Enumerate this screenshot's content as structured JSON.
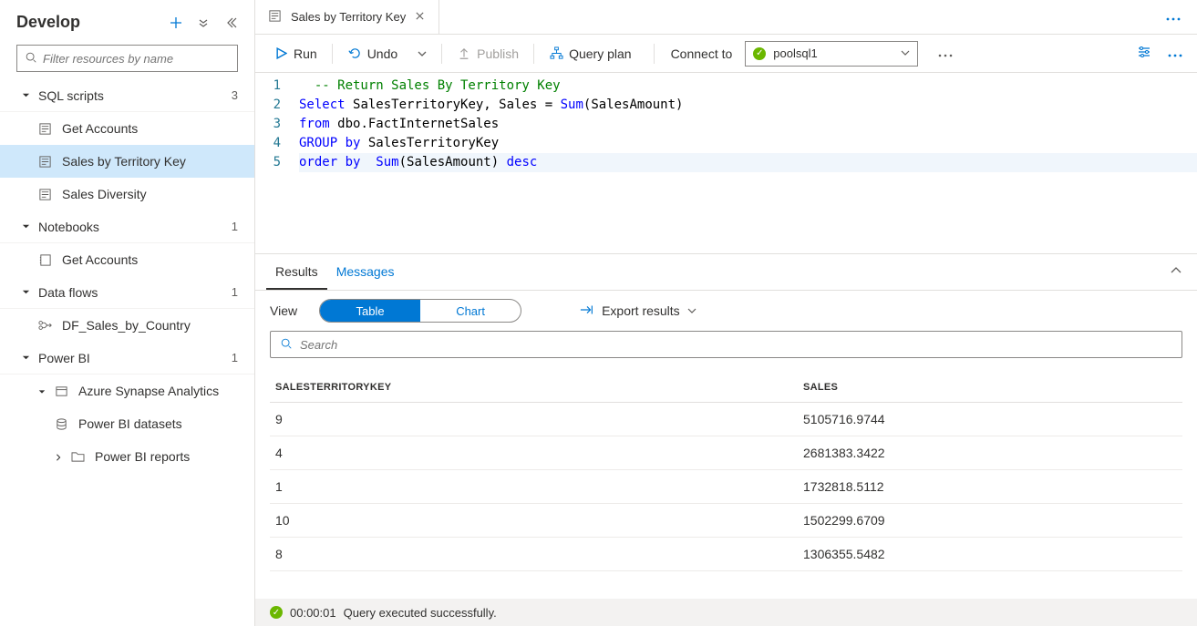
{
  "sidebar": {
    "title": "Develop",
    "filter_placeholder": "Filter resources by name",
    "sections": [
      {
        "label": "SQL scripts",
        "count": "3",
        "items": [
          {
            "label": "Get Accounts",
            "icon": "script-icon"
          },
          {
            "label": "Sales by Territory Key",
            "icon": "script-icon",
            "active": true
          },
          {
            "label": "Sales Diversity",
            "icon": "script-icon"
          }
        ]
      },
      {
        "label": "Notebooks",
        "count": "1",
        "items": [
          {
            "label": "Get Accounts",
            "icon": "notebook-icon"
          }
        ]
      },
      {
        "label": "Data flows",
        "count": "1",
        "items": [
          {
            "label": "DF_Sales_by_Country",
            "icon": "dataflow-icon"
          }
        ]
      },
      {
        "label": "Power BI",
        "count": "1",
        "items": [
          {
            "label": "Azure Synapse Analytics",
            "icon": "workspace-icon",
            "expandable": true,
            "level": 1,
            "children": [
              {
                "label": "Power BI datasets",
                "icon": "dataset-icon"
              },
              {
                "label": "Power BI reports",
                "icon": "folder-icon",
                "expandable": true
              }
            ]
          }
        ]
      }
    ]
  },
  "tab": {
    "title": "Sales by Territory Key"
  },
  "toolbar": {
    "run": "Run",
    "undo": "Undo",
    "publish": "Publish",
    "queryplan": "Query plan",
    "connect_label": "Connect to",
    "pool": "poolsql1"
  },
  "code": {
    "lines": [
      {
        "n": 1,
        "tokens": [
          {
            "t": "  ",
            "c": ""
          },
          {
            "t": "-- Return Sales By Territory Key",
            "c": "cm"
          }
        ]
      },
      {
        "n": 2,
        "tokens": [
          {
            "t": "Select ",
            "c": "kw"
          },
          {
            "t": "SalesTerritoryKey, Sales ",
            "c": "id"
          },
          {
            "t": "= ",
            "c": "op"
          },
          {
            "t": "Sum",
            "c": "kw"
          },
          {
            "t": "(SalesAmount)",
            "c": "id"
          }
        ]
      },
      {
        "n": 3,
        "tokens": [
          {
            "t": "from ",
            "c": "kw"
          },
          {
            "t": "dbo.FactInternetSales",
            "c": "id"
          }
        ]
      },
      {
        "n": 4,
        "tokens": [
          {
            "t": "GROUP by ",
            "c": "kw"
          },
          {
            "t": "SalesTerritoryKey",
            "c": "id"
          }
        ]
      },
      {
        "n": 5,
        "hl": true,
        "tokens": [
          {
            "t": "order by  ",
            "c": "kw"
          },
          {
            "t": "Sum",
            "c": "kw"
          },
          {
            "t": "(SalesAmount) ",
            "c": "id"
          },
          {
            "t": "desc",
            "c": "kw"
          }
        ]
      }
    ]
  },
  "results": {
    "tabs": {
      "results": "Results",
      "messages": "Messages"
    },
    "view_label": "View",
    "seg_table": "Table",
    "seg_chart": "Chart",
    "export_label": "Export results",
    "search_placeholder": "Search",
    "columns": [
      "SALESTERRITORYKEY",
      "SALES"
    ],
    "rows": [
      [
        "9",
        "5105716.9744"
      ],
      [
        "4",
        "2681383.3422"
      ],
      [
        "1",
        "1732818.5112"
      ],
      [
        "10",
        "1502299.6709"
      ],
      [
        "8",
        "1306355.5482"
      ]
    ]
  },
  "status": {
    "time": "00:00:01",
    "msg": "Query executed successfully."
  }
}
